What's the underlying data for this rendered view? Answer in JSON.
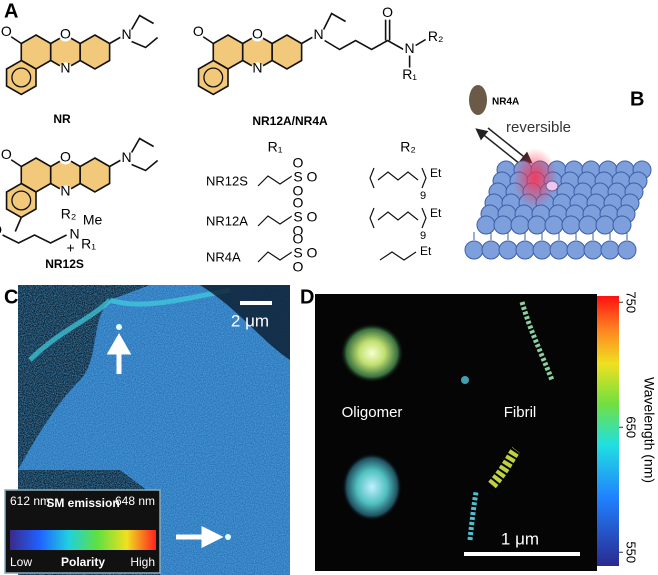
{
  "panel_a": {
    "label": "A",
    "structures": [
      {
        "name": "NR",
        "atoms": [
          "O",
          "O",
          "N",
          "N"
        ]
      },
      {
        "name": "NR12A/NR4A",
        "atoms": [
          "O",
          "O",
          "N",
          "N",
          "O",
          "N",
          "R₂",
          "R₁"
        ]
      },
      {
        "name": "NR12S",
        "atoms": [
          "O",
          "O",
          "N",
          "N",
          "O",
          "N",
          "R₂",
          "Me",
          "R₁",
          "+"
        ]
      }
    ],
    "table": {
      "headers": [
        "R₁",
        "R₂"
      ],
      "rows": [
        {
          "name": "NR12S",
          "r1": [
            "S",
            "O",
            "O",
            "O"
          ],
          "r2": [
            "9",
            "Et"
          ]
        },
        {
          "name": "NR12A",
          "r1": [
            "S",
            "O",
            "O",
            "O"
          ],
          "r2": [
            "Et",
            "9"
          ]
        },
        {
          "name": "NR4A",
          "r1": [
            "S",
            "O",
            "O",
            "O"
          ],
          "r2": [
            "Et"
          ]
        }
      ]
    }
  },
  "panel_b": {
    "label": "B",
    "probe": "NR4A",
    "arrow_text": "reversible"
  },
  "panel_c": {
    "label": "C",
    "scale_bar": "2 μm",
    "legend": {
      "min": "612 nm",
      "title": "SM emission",
      "max": "648 nm",
      "low": "Low",
      "axis": "Polarity",
      "high": "High"
    }
  },
  "panel_d": {
    "label": "D",
    "oligomer": "Oligomer",
    "fibril": "Fibril",
    "scale_bar": "1 μm",
    "colorbar": {
      "lim": [
        539,
        755
      ],
      "ticks": [
        750,
        650,
        550
      ],
      "label": "Wavelength (nm)"
    }
  }
}
